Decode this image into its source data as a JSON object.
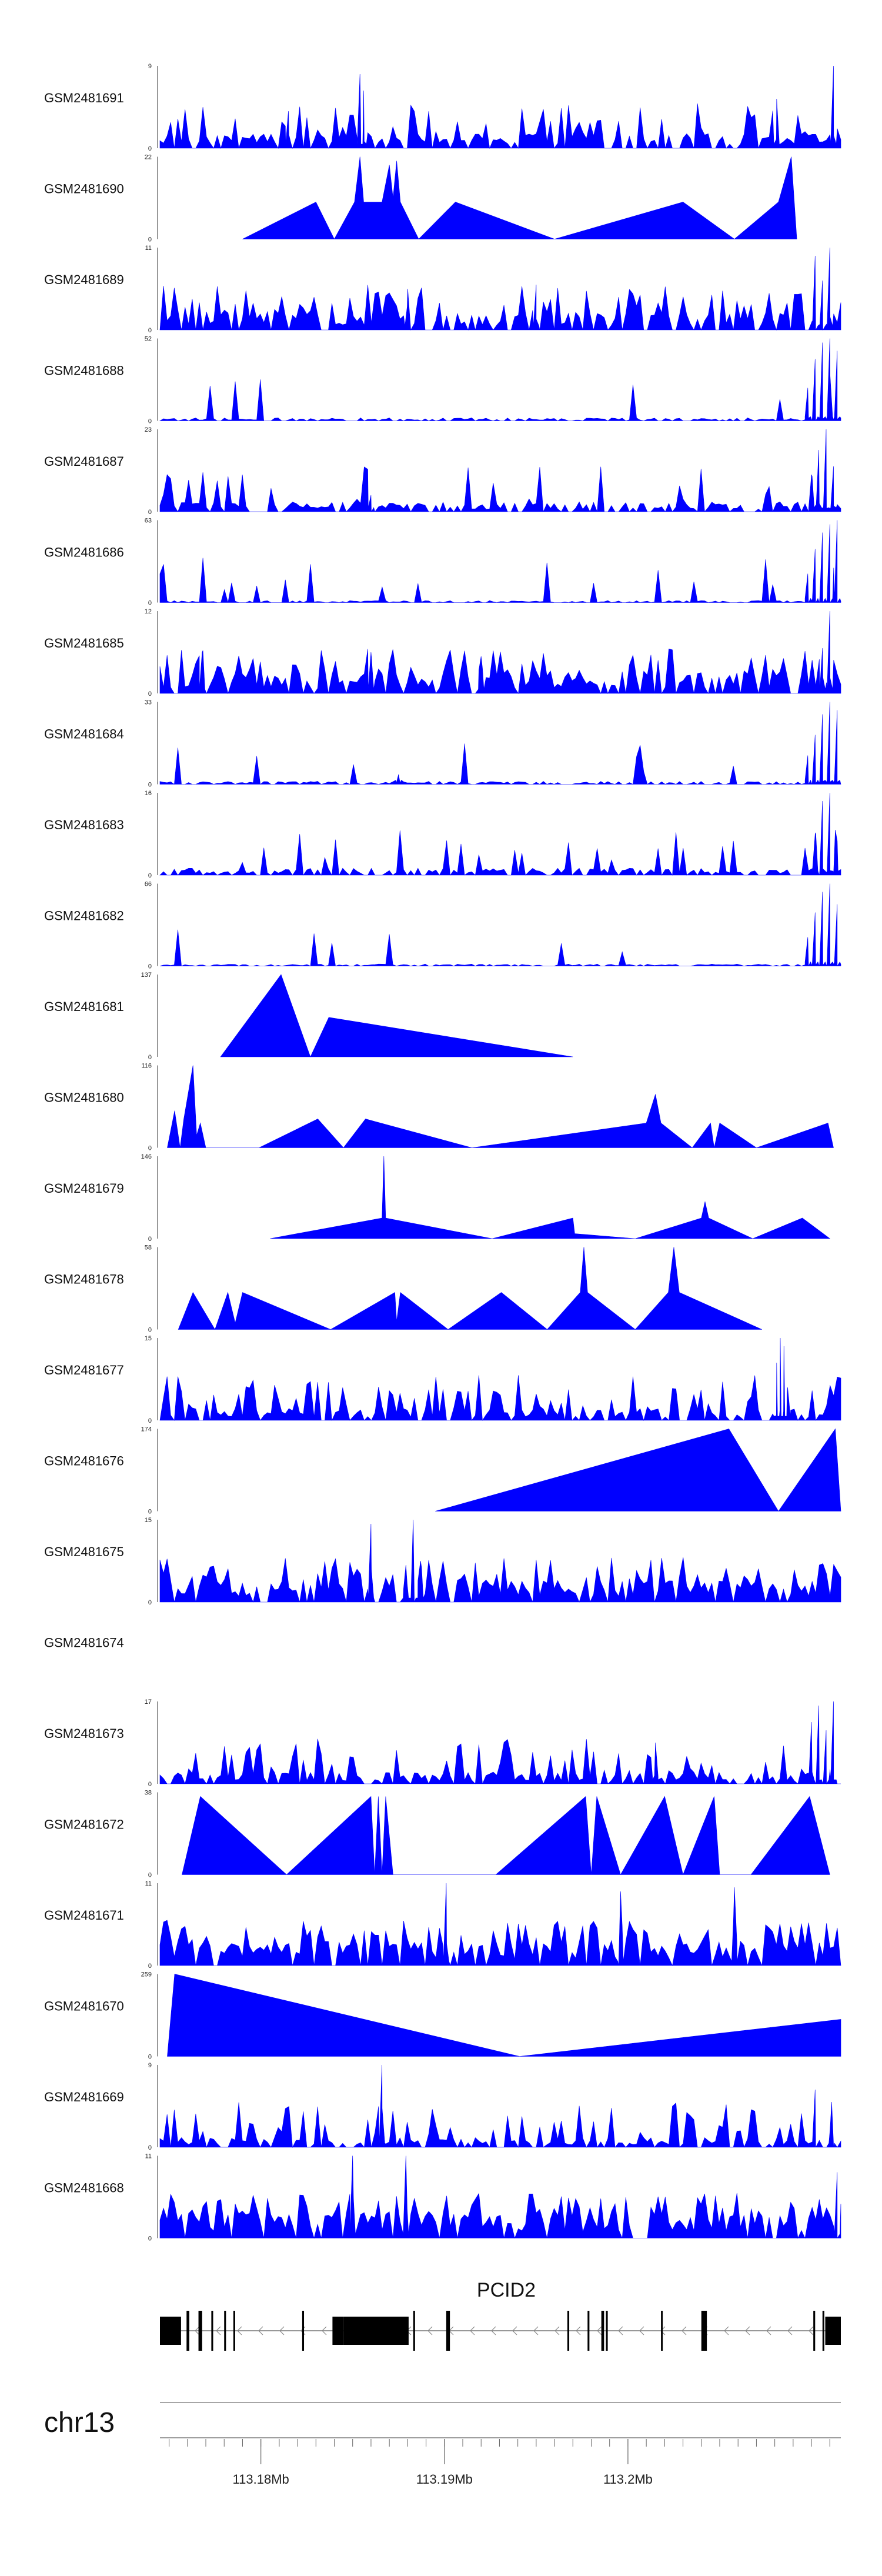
{
  "chart_data": {
    "type": "area",
    "title": "",
    "x_unit": "Mb",
    "xlim": [
      113.1745,
      113.2116
    ],
    "track_color": "#0000ff",
    "tracks": [
      {
        "name": "GSM2481691",
        "ymax": "9",
        "pattern": "noisy",
        "seed": 1,
        "base": 0.15,
        "spike_rate": 0.25,
        "peaks": [
          [
            113.1854,
            0.9
          ],
          [
            113.1856,
            0.7
          ],
          [
            113.2081,
            0.6
          ],
          [
            113.2112,
            1.0
          ],
          [
            113.1815,
            0.45
          ]
        ]
      },
      {
        "name": "GSM2481690",
        "ymax": "22",
        "pattern": "points",
        "points": [
          [
            113.179,
            0
          ],
          [
            113.183,
            0.45
          ],
          [
            113.184,
            0
          ],
          [
            113.1851,
            0.45
          ],
          [
            113.1854,
            1.0
          ],
          [
            113.1856,
            0.45
          ],
          [
            113.1866,
            0.45
          ],
          [
            113.187,
            0.9
          ],
          [
            113.1872,
            0.5
          ],
          [
            113.1874,
            0.95
          ],
          [
            113.1876,
            0.45
          ],
          [
            113.1886,
            0
          ],
          [
            113.1906,
            0.45
          ],
          [
            113.196,
            0
          ],
          [
            113.203,
            0.45
          ],
          [
            113.2058,
            0
          ],
          [
            113.2082,
            0.45
          ],
          [
            113.2089,
            1.0
          ],
          [
            113.2092,
            0
          ]
        ]
      },
      {
        "name": "GSM2481689",
        "ymax": "11",
        "pattern": "noisy",
        "seed": 3,
        "base": 0.18,
        "spike_rate": 0.35,
        "peaks": [
          [
            113.2102,
            0.9
          ],
          [
            113.2106,
            0.6
          ],
          [
            113.211,
            1.0
          ],
          [
            113.195,
            0.55
          ],
          [
            113.188,
            0.5
          ]
        ]
      },
      {
        "name": "GSM2481688",
        "ymax": "52",
        "pattern": "ramp",
        "seed": 4,
        "base": 0.03,
        "spike_rate": 0.05,
        "peaks": [
          [
            113.2098,
            0.4
          ],
          [
            113.2102,
            0.75
          ],
          [
            113.2106,
            0.95
          ],
          [
            113.211,
            1.0
          ],
          [
            113.2114,
            0.85
          ]
        ]
      },
      {
        "name": "GSM2481687",
        "ymax": "23",
        "pattern": "ramp",
        "seed": 5,
        "base": 0.1,
        "spike_rate": 0.15,
        "peaks": [
          [
            113.21,
            0.45
          ],
          [
            113.2104,
            0.75
          ],
          [
            113.2108,
            1.0
          ],
          [
            113.2112,
            0.55
          ],
          [
            113.186,
            0.2
          ]
        ]
      },
      {
        "name": "GSM2481686",
        "ymax": "63",
        "pattern": "ramp",
        "seed": 6,
        "base": 0.02,
        "spike_rate": 0.05,
        "peaks": [
          [
            113.2098,
            0.35
          ],
          [
            113.2102,
            0.65
          ],
          [
            113.2106,
            0.85
          ],
          [
            113.211,
            0.95
          ],
          [
            113.2114,
            1.0
          ]
        ]
      },
      {
        "name": "GSM2481685",
        "ymax": "12",
        "pattern": "noisy",
        "seed": 7,
        "base": 0.2,
        "spike_rate": 0.4,
        "peaks": [
          [
            113.211,
            1.0
          ],
          [
            113.2106,
            0.55
          ],
          [
            113.1768,
            0.5
          ],
          [
            113.186,
            0.5
          ],
          [
            113.192,
            0.45
          ]
        ]
      },
      {
        "name": "GSM2481684",
        "ymax": "33",
        "pattern": "ramp",
        "seed": 8,
        "base": 0.03,
        "spike_rate": 0.05,
        "peaks": [
          [
            113.2098,
            0.35
          ],
          [
            113.2102,
            0.6
          ],
          [
            113.2106,
            0.85
          ],
          [
            113.211,
            1.0
          ],
          [
            113.2114,
            0.9
          ],
          [
            113.1875,
            0.12
          ]
        ]
      },
      {
        "name": "GSM2481683",
        "ymax": "16",
        "pattern": "ramp",
        "seed": 9,
        "base": 0.07,
        "spike_rate": 0.12,
        "peaks": [
          [
            113.2102,
            0.5
          ],
          [
            113.2106,
            0.9
          ],
          [
            113.211,
            1.0
          ],
          [
            113.2113,
            0.55
          ]
        ]
      },
      {
        "name": "GSM2481682",
        "ymax": "66",
        "pattern": "ramp",
        "seed": 10,
        "base": 0.02,
        "spike_rate": 0.04,
        "peaks": [
          [
            113.2098,
            0.35
          ],
          [
            113.2102,
            0.65
          ],
          [
            113.2106,
            0.9
          ],
          [
            113.211,
            1.0
          ],
          [
            113.2114,
            0.75
          ]
        ]
      },
      {
        "name": "GSM2481681",
        "ymax": "137",
        "pattern": "points",
        "points": [
          [
            113.1778,
            0
          ],
          [
            113.1811,
            1.0
          ],
          [
            113.1827,
            0
          ],
          [
            113.1837,
            0.48
          ],
          [
            113.197,
            0
          ]
        ]
      },
      {
        "name": "GSM2481680",
        "ymax": "116",
        "pattern": "points",
        "points": [
          [
            113.1749,
            0
          ],
          [
            113.1753,
            0.45
          ],
          [
            113.1756,
            0
          ],
          [
            113.1758,
            0.35
          ],
          [
            113.1763,
            1.0
          ],
          [
            113.1765,
            0.15
          ],
          [
            113.1767,
            0.3
          ],
          [
            113.177,
            0
          ],
          [
            113.1799,
            0
          ],
          [
            113.1831,
            0.35
          ],
          [
            113.1845,
            0
          ],
          [
            113.1857,
            0.35
          ],
          [
            113.1915,
            0
          ],
          [
            113.201,
            0.3
          ],
          [
            113.2015,
            0.65
          ],
          [
            113.2018,
            0.3
          ],
          [
            113.2035,
            0
          ],
          [
            113.2045,
            0.3
          ],
          [
            113.2047,
            0
          ],
          [
            113.205,
            0.3
          ],
          [
            113.207,
            0
          ],
          [
            113.2109,
            0.3
          ],
          [
            113.2112,
            0
          ]
        ]
      },
      {
        "name": "GSM2481679",
        "ymax": "146",
        "pattern": "points",
        "points": [
          [
            113.1805,
            0
          ],
          [
            113.1866,
            0.25
          ],
          [
            113.1867,
            1.0
          ],
          [
            113.1868,
            0.25
          ],
          [
            113.1926,
            0
          ],
          [
            113.197,
            0.25
          ],
          [
            113.1971,
            0.06
          ],
          [
            113.2004,
            0
          ],
          [
            113.204,
            0.25
          ],
          [
            113.2042,
            0.45
          ],
          [
            113.2044,
            0.25
          ],
          [
            113.2068,
            0
          ],
          [
            113.2095,
            0.25
          ],
          [
            113.211,
            0
          ]
        ]
      },
      {
        "name": "GSM2481678",
        "ymax": "58",
        "pattern": "points",
        "points": [
          [
            113.1755,
            0
          ],
          [
            113.1763,
            0.45
          ],
          [
            113.1775,
            0
          ],
          [
            113.1782,
            0.45
          ],
          [
            113.1786,
            0.08
          ],
          [
            113.179,
            0.45
          ],
          [
            113.1838,
            0
          ],
          [
            113.1873,
            0.45
          ],
          [
            113.1874,
            0.1
          ],
          [
            113.1876,
            0.45
          ],
          [
            113.1902,
            0
          ],
          [
            113.1931,
            0.45
          ],
          [
            113.1956,
            0
          ],
          [
            113.1974,
            0.45
          ],
          [
            113.1976,
            1.0
          ],
          [
            113.1978,
            0.45
          ],
          [
            113.2004,
            0
          ],
          [
            113.2022,
            0.45
          ],
          [
            113.2025,
            1.0
          ],
          [
            113.2028,
            0.45
          ],
          [
            113.2073,
            0
          ]
        ]
      },
      {
        "name": "GSM2481677",
        "ymax": "15",
        "pattern": "noisy",
        "seed": 15,
        "base": 0.12,
        "spike_rate": 0.3,
        "peaks": [
          [
            113.2081,
            0.7
          ],
          [
            113.2083,
            1.0
          ],
          [
            113.2085,
            0.9
          ],
          [
            113.2087,
            0.4
          ]
        ]
      },
      {
        "name": "GSM2481676",
        "ymax": "174",
        "pattern": "points",
        "points": [
          [
            113.1895,
            0
          ],
          [
            113.2055,
            1.0
          ],
          [
            113.2082,
            0
          ],
          [
            113.2113,
            1.0
          ],
          [
            113.2116,
            0
          ]
        ]
      },
      {
        "name": "GSM2481675",
        "ymax": "15",
        "pattern": "noisy",
        "seed": 17,
        "base": 0.22,
        "spike_rate": 0.5,
        "peaks": [
          [
            113.186,
            0.95
          ],
          [
            113.1883,
            1.0
          ],
          [
            113.1887,
            0.5
          ],
          [
            113.1879,
            0.45
          ]
        ]
      },
      {
        "name": "GSM2481674",
        "ymax": "",
        "pattern": "empty"
      },
      {
        "name": "GSM2481673",
        "ymax": "17",
        "pattern": "noisy",
        "seed": 19,
        "base": 0.12,
        "spike_rate": 0.2,
        "peaks": [
          [
            113.21,
            0.75
          ],
          [
            113.2104,
            0.95
          ],
          [
            113.2108,
            0.65
          ],
          [
            113.2112,
            1.0
          ],
          [
            113.2015,
            0.5
          ]
        ]
      },
      {
        "name": "GSM2481672",
        "ymax": "38",
        "pattern": "points",
        "points": [
          [
            113.1757,
            0
          ],
          [
            113.1767,
            0.95
          ],
          [
            113.1814,
            0
          ],
          [
            113.186,
            0.95
          ],
          [
            113.1862,
            0
          ],
          [
            113.1864,
            0.95
          ],
          [
            113.1866,
            0
          ],
          [
            113.1868,
            0.95
          ],
          [
            113.1872,
            0
          ],
          [
            113.1928,
            0
          ],
          [
            113.1977,
            0.95
          ],
          [
            113.198,
            0
          ],
          [
            113.1983,
            0.95
          ],
          [
            113.1996,
            0
          ],
          [
            113.202,
            0.95
          ],
          [
            113.203,
            0
          ],
          [
            113.2047,
            0.95
          ],
          [
            113.205,
            0
          ],
          [
            113.2067,
            0
          ],
          [
            113.2099,
            0.95
          ],
          [
            113.211,
            0
          ]
        ]
      },
      {
        "name": "GSM2481671",
        "ymax": "11",
        "pattern": "noisy",
        "seed": 21,
        "base": 0.25,
        "spike_rate": 0.55,
        "peaks": [
          [
            113.1901,
            1.0
          ],
          [
            113.2058,
            0.95
          ],
          [
            113.1996,
            0.9
          ]
        ]
      },
      {
        "name": "GSM2481670",
        "ymax": "259",
        "pattern": "points",
        "points": [
          [
            113.1749,
            0
          ],
          [
            113.1753,
            1.0
          ],
          [
            113.1941,
            0
          ],
          [
            113.2116,
            0.45
          ]
        ]
      },
      {
        "name": "GSM2481669",
        "ymax": "9",
        "pattern": "noisy",
        "seed": 23,
        "base": 0.1,
        "spike_rate": 0.25,
        "peaks": [
          [
            113.1866,
            1.0
          ],
          [
            113.2102,
            0.7
          ],
          [
            113.2111,
            0.55
          ]
        ]
      },
      {
        "name": "GSM2481668",
        "ymax": "11",
        "pattern": "noisy",
        "seed": 24,
        "base": 0.25,
        "spike_rate": 0.5,
        "peaks": [
          [
            113.185,
            1.0
          ],
          [
            113.1879,
            1.0
          ],
          [
            113.2114,
            0.8
          ]
        ]
      }
    ],
    "gene": {
      "name": "PCID2",
      "strand": "-",
      "start": 113.1745,
      "end": 113.2116,
      "exons": [
        [
          113.1745,
          113.17565
        ],
        [
          113.17595,
          113.1761
        ],
        [
          113.1766,
          113.1768
        ],
        [
          113.1773,
          113.1774
        ],
        [
          113.178,
          113.1781
        ],
        [
          113.1785,
          113.1786
        ],
        [
          113.18225,
          113.18235
        ],
        [
          113.1839,
          113.1845
        ],
        [
          113.1845,
          113.18805
        ],
        [
          113.1883,
          113.1884
        ],
        [
          113.1901,
          113.1903
        ],
        [
          113.1967,
          113.1968
        ],
        [
          113.1978,
          113.1979
        ],
        [
          113.19855,
          113.1987
        ],
        [
          113.1988,
          113.1989
        ],
        [
          113.2018,
          113.20185
        ],
        [
          113.204,
          113.2043
        ],
        [
          113.2101,
          113.2102
        ],
        [
          113.2106,
          113.2107
        ],
        [
          113.21075,
          113.2116
        ]
      ]
    },
    "chromosome": "chr13",
    "axis_ticks": [
      {
        "value": 113.18,
        "label": "113.18Mb"
      },
      {
        "value": 113.19,
        "label": "113.19Mb"
      },
      {
        "value": 113.2,
        "label": "113.2Mb"
      }
    ]
  }
}
